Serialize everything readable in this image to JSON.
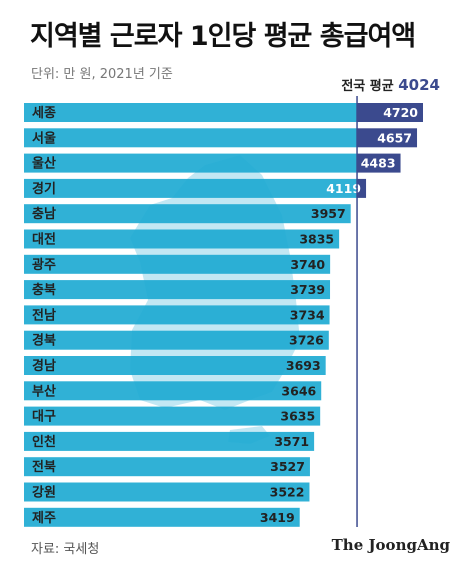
{
  "header": {
    "title": "지역별 근로자 1인당 평균 총급여액",
    "unit": "단위: 만 원, 2021년 기준"
  },
  "footer": {
    "source": "자료: 국세청",
    "brand": "The JoongAng"
  },
  "colors": {
    "bar": "#1eaad2",
    "highlight": "#3b4a8e",
    "map": "#8fd4ea",
    "avg_line": "#3b4a8e"
  },
  "chart_data": {
    "type": "bar",
    "orientation": "horizontal",
    "title": "지역별 근로자 1인당 평균 총급여액",
    "subtitle": "단위: 만 원, 2021년 기준",
    "categories": [
      "세종",
      "서울",
      "울산",
      "경기",
      "충남",
      "대전",
      "광주",
      "충북",
      "전남",
      "경북",
      "경남",
      "부산",
      "대구",
      "인천",
      "전북",
      "강원",
      "제주"
    ],
    "values": [
      4720,
      4657,
      4483,
      4119,
      3957,
      3835,
      3740,
      3739,
      3734,
      3726,
      3693,
      3646,
      3635,
      3571,
      3527,
      3522,
      3419
    ],
    "reference_line": {
      "label": "전국 평균",
      "value": 4024
    },
    "highlighted_above_average": true
  }
}
